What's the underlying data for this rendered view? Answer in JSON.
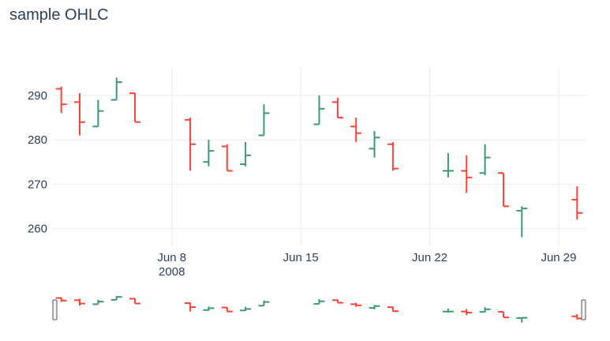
{
  "chart_data": {
    "type": "ohlc",
    "title": "sample OHLC",
    "xlabel": "",
    "ylabel": "",
    "x_tick_labels": [
      "Jun 8",
      "Jun 15",
      "Jun 22",
      "Jun 29"
    ],
    "x_tick_dates": [
      "2008-06-08",
      "2008-06-15",
      "2008-06-22",
      "2008-06-29"
    ],
    "x_year_label": "2008",
    "y_tick_labels": [
      "260",
      "270",
      "280",
      "290"
    ],
    "y_ticks": [
      260,
      270,
      280,
      290
    ],
    "ylim": [
      255.8,
      296.4
    ],
    "xlim": [
      "2008-06-01 12:00",
      "2008-06-30 12:00"
    ],
    "grid": true,
    "rangeslider": true,
    "colors": {
      "increasing": "#3d9970",
      "decreasing": "#ff4136",
      "grid": "#ebebeb",
      "text": "#2a3f5f"
    },
    "points": [
      {
        "date": "2008-06-02",
        "open": 291.5,
        "high": 292.0,
        "low": 286.0,
        "close": 288.0
      },
      {
        "date": "2008-06-03",
        "open": 288.5,
        "high": 290.5,
        "low": 281.0,
        "close": 284.0
      },
      {
        "date": "2008-06-04",
        "open": 283.0,
        "high": 289.0,
        "low": 283.0,
        "close": 286.5
      },
      {
        "date": "2008-06-05",
        "open": 289.0,
        "high": 294.0,
        "low": 289.0,
        "close": 293.0
      },
      {
        "date": "2008-06-06",
        "open": 290.5,
        "high": 290.5,
        "low": 284.0,
        "close": 284.0
      },
      {
        "date": "2008-06-09",
        "open": 284.5,
        "high": 285.0,
        "low": 273.0,
        "close": 279.0
      },
      {
        "date": "2008-06-10",
        "open": 275.0,
        "high": 280.0,
        "low": 274.0,
        "close": 277.5
      },
      {
        "date": "2008-06-11",
        "open": 278.5,
        "high": 279.0,
        "low": 273.0,
        "close": 273.0
      },
      {
        "date": "2008-06-12",
        "open": 274.5,
        "high": 279.5,
        "low": 274.0,
        "close": 276.5
      },
      {
        "date": "2008-06-13",
        "open": 281.0,
        "high": 288.0,
        "low": 281.0,
        "close": 286.0
      },
      {
        "date": "2008-06-16",
        "open": 283.5,
        "high": 290.0,
        "low": 283.5,
        "close": 287.0
      },
      {
        "date": "2008-06-17",
        "open": 288.5,
        "high": 289.5,
        "low": 285.0,
        "close": 285.0
      },
      {
        "date": "2008-06-18",
        "open": 283.0,
        "high": 285.0,
        "low": 279.5,
        "close": 281.5
      },
      {
        "date": "2008-06-19",
        "open": 278.0,
        "high": 282.0,
        "low": 276.0,
        "close": 280.5
      },
      {
        "date": "2008-06-20",
        "open": 279.0,
        "high": 279.5,
        "low": 273.0,
        "close": 273.5
      },
      {
        "date": "2008-06-23",
        "open": 273.0,
        "high": 277.0,
        "low": 271.5,
        "close": 273.0
      },
      {
        "date": "2008-06-24",
        "open": 273.0,
        "high": 276.5,
        "low": 268.0,
        "close": 271.5
      },
      {
        "date": "2008-06-25",
        "open": 272.5,
        "high": 279.0,
        "low": 272.0,
        "close": 276.0
      },
      {
        "date": "2008-06-26",
        "open": 272.5,
        "high": 272.5,
        "low": 265.0,
        "close": 265.0
      },
      {
        "date": "2008-06-27",
        "open": 264.0,
        "high": 265.0,
        "low": 258.0,
        "close": 264.5
      },
      {
        "date": "2008-06-30",
        "open": 266.5,
        "high": 269.5,
        "low": 262.0,
        "close": 263.5
      }
    ]
  }
}
